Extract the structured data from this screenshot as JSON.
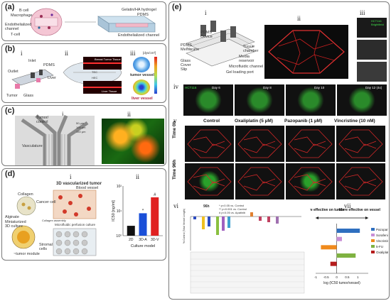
{
  "panels": {
    "a": {
      "label": "(a)",
      "left_labels": [
        "B cell",
        "Macrophage",
        "Endothelialized channel",
        "T-cell"
      ],
      "right_labels": [
        "Gelatin/HA hydrogel",
        "PDMS",
        "Endothelialized channel"
      ]
    },
    "b": {
      "label": "(b)",
      "sub_i": "i",
      "sub_ii": "ii",
      "sub_iii": "iii",
      "labels": [
        "Inlet",
        "PDMS",
        "Outlet",
        "Liver",
        "Tumor",
        "Glass"
      ],
      "micro_top": "Breast Tumor Tissue",
      "micro_bottom": "Liver Tissue",
      "inset": [
        "TEC",
        "HEC"
      ],
      "unit": "[dys/cm²]",
      "tumor_vessel": "tumor vessel",
      "liver_vessel": "liver vessel"
    },
    "c": {
      "label": "(c)",
      "sub_i": "i",
      "sub_ii": "ii",
      "labels": [
        "Tumor/ control",
        "Vasculature"
      ],
      "scale": [
        "50 µm",
        "100 µm",
        "150 µm"
      ]
    },
    "d": {
      "label": "(d)",
      "sub_i": "i",
      "sub_ii": "ii",
      "left_labels": [
        "Collagen",
        "Cancer cell",
        "Alginate",
        "Miniaturized 3D culture",
        "~tumor module",
        "Stromal cells",
        "Collagen assembly"
      ],
      "title_3d": "3D vascularized tumor",
      "blood_vessel": "Blood vessel",
      "perfusion": "Microfluidic perfusion culture"
    },
    "e": {
      "label": "(e)",
      "sub_i": "i",
      "sub_ii": "ii",
      "sub_iii": "iii",
      "sub_iv": "iv",
      "sub_v": "v",
      "sub_vi": "vi",
      "sub_vii": "vii",
      "device_labels": [
        "PDMS Device",
        "PDMS Membrane",
        "Glass Cover Slip",
        "Microfluidic channel",
        "Media reservoir",
        "Gel loading port",
        "Tissue chamber"
      ],
      "iii_labels": [
        "HCT116",
        "Brightfield"
      ],
      "iv_labels": [
        "HCT116",
        "Day 6",
        "Day 8",
        "Day 10",
        "Day 12 (4x)"
      ],
      "v_headers": [
        "Control",
        "Oxaliplatin (5 µM)",
        "Pazopanib (1 µM)",
        "Vincristine (10 nM)"
      ],
      "v_rows": [
        "Time 0h",
        "Time 96h"
      ],
      "vi_time": "96h",
      "vi_legend": [
        "* p<0.05 vs. Control",
        "** p<0.001 vs. Control",
        "# p<0.05 vs. Apatinib"
      ],
      "vi_ylabel": "% Control (Total Vessel Length)",
      "vii_left": "More effective on tumor",
      "vii_right": "More effective on vessel"
    }
  },
  "chart_data": [
    {
      "type": "bar",
      "categories": [
        "2D",
        "3D-A",
        "3D-V"
      ],
      "values": [
        2.5,
        8,
        35
      ],
      "ylabel": "IC50 [ng/ml]",
      "xlabel": "Culture model",
      "scale": "log",
      "ylim": [
        1,
        100
      ],
      "annotations": [
        "*",
        "#"
      ],
      "yticks": [
        "10⁰",
        "10¹",
        "10²"
      ],
      "colors": [
        "#111111",
        "#1a4fd8",
        "#e02020"
      ]
    },
    {
      "type": "bar",
      "orientation": "horizontal",
      "categories": [
        "Pazopanib",
        "Sorafenib",
        "Vincristine",
        "5-FU",
        "Oxaliplatin"
      ],
      "values": [
        1.1,
        0.25,
        -0.75,
        0.9,
        -0.3
      ],
      "xlabel": "log (IC50 tumor/vessel)",
      "xticks": [
        "-1",
        "-0.5",
        "0",
        "0.5",
        "1"
      ],
      "xlim": [
        -1,
        1.5
      ],
      "colors": [
        "#2f6fbf",
        "#c98fd6",
        "#f08a1c",
        "#7fb241",
        "#b51c1c"
      ]
    }
  ]
}
